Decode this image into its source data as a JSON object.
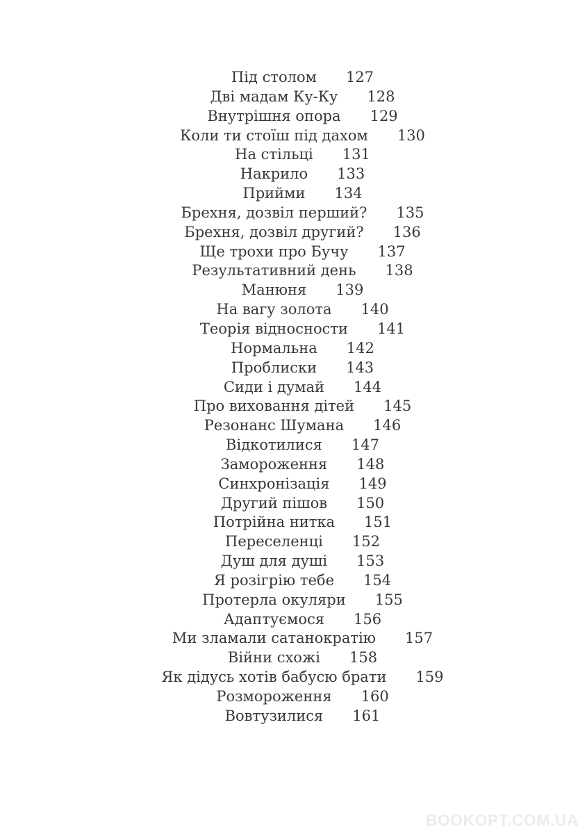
{
  "page": {
    "background": "#ffffff",
    "text_color": "#383838"
  },
  "toc": {
    "entries": [
      {
        "title": "Під столом",
        "page": "127"
      },
      {
        "title": "Дві мадам Ку-Ку",
        "page": "128"
      },
      {
        "title": "Внутрішня опора",
        "page": "129"
      },
      {
        "title": "Коли ти стоїш під дахом",
        "page": "130"
      },
      {
        "title": "На стільці",
        "page": "131"
      },
      {
        "title": "Накрило",
        "page": "133"
      },
      {
        "title": "Прийми",
        "page": "134"
      },
      {
        "title": "Брехня, дозвіл перший?",
        "page": "135"
      },
      {
        "title": "Брехня, дозвіл другий?",
        "page": "136"
      },
      {
        "title": "Ще трохи про Бучу",
        "page": "137"
      },
      {
        "title": "Результативний день",
        "page": "138"
      },
      {
        "title": "Манюня",
        "page": "139"
      },
      {
        "title": "На вагу золота",
        "page": "140"
      },
      {
        "title": "Теорія відносности",
        "page": "141"
      },
      {
        "title": "Нормальна",
        "page": "142"
      },
      {
        "title": "Проблиски",
        "page": "143"
      },
      {
        "title": "Сиди і думай",
        "page": "144"
      },
      {
        "title": "Про виховання дітей",
        "page": "145"
      },
      {
        "title": "Резонанс Шумана",
        "page": "146"
      },
      {
        "title": "Відкотилися",
        "page": "147"
      },
      {
        "title": "Замороження",
        "page": "148"
      },
      {
        "title": "Синхронізація",
        "page": "149"
      },
      {
        "title": "Другий пішов",
        "page": "150"
      },
      {
        "title": "Потрійна нитка",
        "page": "151"
      },
      {
        "title": "Переселенці",
        "page": "152"
      },
      {
        "title": "Душ для душі",
        "page": "153"
      },
      {
        "title": "Я розігрію тебе",
        "page": "154"
      },
      {
        "title": "Протерла окуляри",
        "page": "155"
      },
      {
        "title": "Адаптуємося",
        "page": "156"
      },
      {
        "title": "Ми зламали сатанократію",
        "page": "157"
      },
      {
        "title": "Війни схожі",
        "page": "158"
      },
      {
        "title": "Як дідусь хотів бабусю брати",
        "page": "159"
      },
      {
        "title": "Розмороження",
        "page": "160"
      },
      {
        "title": "Вовтузилися",
        "page": "161"
      }
    ]
  },
  "watermark": {
    "text": "BOOKOPT.COM.UA",
    "color": "#ecece9"
  }
}
